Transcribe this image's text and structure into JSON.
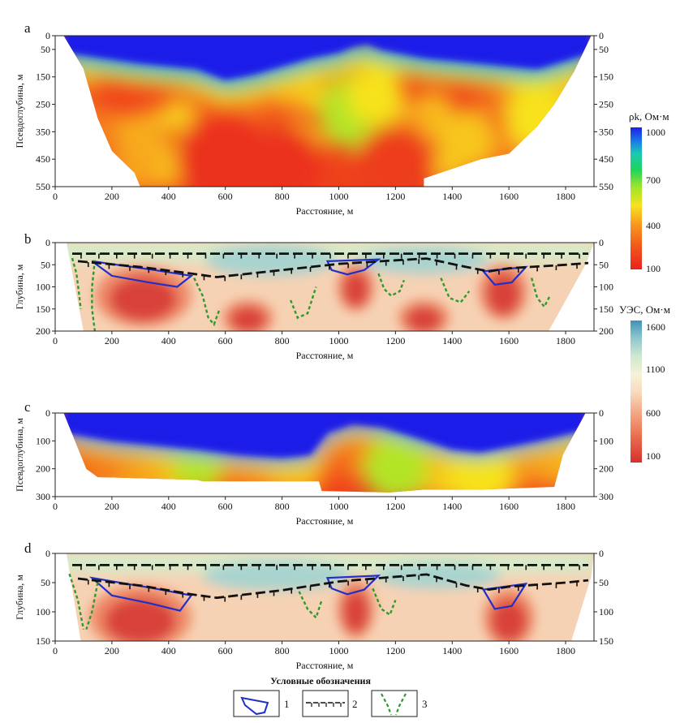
{
  "figure": {
    "legend_title": "Условные обозначения",
    "legend_items": [
      "1",
      "2",
      "3"
    ]
  },
  "colorbars": [
    {
      "title": "ρk, Ом·м",
      "ticks": [
        "1000",
        "700",
        "400",
        "100"
      ],
      "range": [
        100,
        1000
      ],
      "colormap": "rainbow"
    },
    {
      "title": "УЭС, Ом·м",
      "ticks": [
        "1600",
        "1100",
        "600",
        "100"
      ],
      "range": [
        100,
        1600
      ],
      "colormap": "spectral"
    }
  ],
  "chart_data": [
    {
      "panel": "a",
      "type": "heatmap",
      "colorbar": 0,
      "xlabel": "Расстояние, м",
      "ylabel": "Псевдоглубина, м",
      "xlim": [
        0,
        1900
      ],
      "ylim": [
        0,
        550
      ],
      "xticks": [
        "0",
        "200",
        "400",
        "600",
        "800",
        "1000",
        "1200",
        "1400",
        "1600",
        "1800"
      ],
      "yticks": [
        "0",
        "50",
        "150",
        "250",
        "350",
        "450",
        "550"
      ],
      "yticks_right": [
        "0",
        "50",
        "150",
        "250",
        "350",
        "450",
        "550"
      ],
      "ytick_values": [
        0,
        50,
        150,
        250,
        350,
        450,
        550
      ],
      "outline_top": [
        [
          30,
          0
        ],
        [
          1890,
          0
        ]
      ],
      "outline_bottom": [
        [
          30,
          0
        ],
        [
          100,
          120
        ],
        [
          150,
          300
        ],
        [
          200,
          420
        ],
        [
          280,
          500
        ],
        [
          300,
          550
        ],
        [
          1300,
          550
        ],
        [
          1300,
          520
        ],
        [
          1500,
          450
        ],
        [
          1600,
          430
        ],
        [
          1700,
          330
        ],
        [
          1760,
          250
        ],
        [
          1830,
          130
        ],
        [
          1890,
          0
        ]
      ],
      "blue_base": [
        [
          30,
          60
        ],
        [
          300,
          100
        ],
        [
          500,
          120
        ],
        [
          600,
          160
        ],
        [
          700,
          140
        ],
        [
          800,
          110
        ],
        [
          900,
          80
        ],
        [
          1000,
          60
        ],
        [
          1050,
          40
        ],
        [
          1100,
          30
        ],
        [
          1150,
          50
        ],
        [
          1300,
          80
        ],
        [
          1400,
          90
        ],
        [
          1500,
          100
        ],
        [
          1600,
          110
        ],
        [
          1700,
          120
        ],
        [
          1800,
          90
        ],
        [
          1890,
          60
        ]
      ],
      "anomalies": [
        {
          "x": 300,
          "y": 380,
          "level": 0.35,
          "size": 30
        },
        {
          "x": 1060,
          "y": 280,
          "level": 0.55,
          "size": 45
        },
        {
          "x": 1130,
          "y": 220,
          "level": 0.45,
          "size": 35
        },
        {
          "x": 1700,
          "y": 300,
          "level": 0.45,
          "size": 40
        },
        {
          "x": 1450,
          "y": 380,
          "level": 0.4,
          "size": 35
        },
        {
          "x": 600,
          "y": 450,
          "level": 0.05,
          "size": 60
        },
        {
          "x": 800,
          "y": 470,
          "level": 0.05,
          "size": 50
        },
        {
          "x": 1200,
          "y": 470,
          "level": 0.08,
          "size": 50
        }
      ]
    },
    {
      "panel": "b",
      "type": "heatmap",
      "colorbar": 1,
      "xlabel": "Расстояние, м",
      "ylabel": "Глубина, м",
      "xlim": [
        0,
        1900
      ],
      "ylim": [
        0,
        200
      ],
      "xticks": [
        "0",
        "200",
        "400",
        "600",
        "800",
        "1000",
        "1200",
        "1400",
        "1600",
        "1800"
      ],
      "yticks": [
        "0",
        "50",
        "100",
        "150",
        "200"
      ],
      "yticks_right": [
        "0",
        "50",
        "100",
        "150",
        "200"
      ],
      "ytick_values": [
        0,
        50,
        100,
        150,
        200
      ],
      "outline_bottom": [
        [
          0,
          0
        ],
        [
          40,
          0
        ],
        [
          100,
          200
        ],
        [
          1740,
          200
        ],
        [
          1870,
          50
        ],
        [
          1900,
          0
        ]
      ],
      "low_bodies": [
        {
          "x": 310,
          "y": 120,
          "rx": 170,
          "ry": 70
        },
        {
          "x": 680,
          "y": 170,
          "rx": 90,
          "ry": 40
        },
        {
          "x": 1060,
          "y": 100,
          "rx": 65,
          "ry": 55
        },
        {
          "x": 1300,
          "y": 170,
          "rx": 90,
          "ry": 40
        },
        {
          "x": 1580,
          "y": 110,
          "rx": 85,
          "ry": 65
        }
      ],
      "high_bodies": [
        {
          "x": 760,
          "y": 40,
          "rx": 230,
          "ry": 35
        },
        {
          "x": 1300,
          "y": 40,
          "rx": 230,
          "ry": 30
        }
      ],
      "contacts": [
        [
          [
            60,
            25
          ],
          [
            1880,
            25
          ]
        ],
        [
          [
            80,
            42
          ],
          [
            300,
            55
          ],
          [
            480,
            70
          ],
          [
            570,
            78
          ],
          [
            800,
            62
          ],
          [
            1000,
            48
          ],
          [
            1200,
            40
          ],
          [
            1310,
            36
          ],
          [
            1450,
            55
          ],
          [
            1530,
            65
          ],
          [
            1600,
            58
          ],
          [
            1800,
            50
          ],
          [
            1880,
            46
          ]
        ]
      ],
      "bodies_outline": [
        [
          [
            130,
            42
          ],
          [
            350,
            62
          ],
          [
            480,
            75
          ],
          [
            430,
            100
          ],
          [
            330,
            90
          ],
          [
            200,
            75
          ]
        ],
        [
          [
            960,
            42
          ],
          [
            1140,
            38
          ],
          [
            1090,
            62
          ],
          [
            1030,
            72
          ],
          [
            975,
            62
          ]
        ],
        [
          [
            1510,
            65
          ],
          [
            1660,
            55
          ],
          [
            1610,
            90
          ],
          [
            1550,
            95
          ]
        ]
      ],
      "dashed_lines": [
        [
          [
            60,
            35
          ],
          [
            75,
            70
          ],
          [
            85,
            120
          ],
          [
            90,
            150
          ]
        ],
        [
          [
            140,
            40
          ],
          [
            130,
            100
          ],
          [
            130,
            150
          ],
          [
            140,
            200
          ]
        ],
        [
          [
            490,
            80
          ],
          [
            520,
            120
          ],
          [
            540,
            170
          ],
          [
            560,
            185
          ],
          [
            580,
            150
          ]
        ],
        [
          [
            830,
            130
          ],
          [
            855,
            170
          ],
          [
            890,
            160
          ],
          [
            920,
            100
          ]
        ],
        [
          [
            1140,
            70
          ],
          [
            1160,
            105
          ],
          [
            1185,
            120
          ],
          [
            1215,
            110
          ],
          [
            1230,
            85
          ]
        ],
        [
          [
            1360,
            80
          ],
          [
            1390,
            125
          ],
          [
            1430,
            135
          ],
          [
            1460,
            110
          ]
        ],
        [
          [
            1680,
            80
          ],
          [
            1700,
            125
          ],
          [
            1725,
            145
          ],
          [
            1745,
            120
          ]
        ]
      ]
    },
    {
      "panel": "c",
      "type": "heatmap",
      "colorbar": 0,
      "xlabel": "Расстояние, м",
      "ylabel": "Псевдоглубина, м",
      "xlim": [
        0,
        1900
      ],
      "ylim": [
        0,
        300
      ],
      "xticks": [
        "0",
        "200",
        "400",
        "600",
        "800",
        "1000",
        "1200",
        "1400",
        "1600",
        "1800"
      ],
      "yticks": [
        "0",
        "100",
        "200",
        "300"
      ],
      "yticks_right": [
        "0",
        "100",
        "200",
        "300"
      ],
      "ytick_values": [
        0,
        100,
        200,
        300
      ],
      "outline_bottom": [
        [
          30,
          0
        ],
        [
          110,
          200
        ],
        [
          150,
          230
        ],
        [
          500,
          240
        ],
        [
          520,
          245
        ],
        [
          930,
          245
        ],
        [
          940,
          280
        ],
        [
          1180,
          285
        ],
        [
          1300,
          275
        ],
        [
          1500,
          275
        ],
        [
          1760,
          265
        ],
        [
          1790,
          150
        ],
        [
          1870,
          0
        ]
      ],
      "blue_base": [
        [
          30,
          70
        ],
        [
          200,
          100
        ],
        [
          400,
          120
        ],
        [
          500,
          130
        ],
        [
          650,
          150
        ],
        [
          800,
          160
        ],
        [
          900,
          150
        ],
        [
          960,
          70
        ],
        [
          1050,
          40
        ],
        [
          1150,
          50
        ],
        [
          1250,
          80
        ],
        [
          1400,
          130
        ],
        [
          1500,
          140
        ],
        [
          1600,
          120
        ],
        [
          1700,
          100
        ],
        [
          1870,
          60
        ]
      ],
      "anomalies": [
        {
          "x": 1200,
          "y": 200,
          "level": 0.55,
          "size": 40
        },
        {
          "x": 1500,
          "y": 220,
          "level": 0.45,
          "size": 40
        },
        {
          "x": 500,
          "y": 200,
          "level": 0.55,
          "size": 30
        }
      ]
    },
    {
      "panel": "d",
      "type": "heatmap",
      "colorbar": 1,
      "xlabel": "Расстояние, м",
      "ylabel": "Глубина, м",
      "xlim": [
        0,
        1900
      ],
      "ylim": [
        0,
        150
      ],
      "xticks": [
        "0",
        "200",
        "400",
        "600",
        "800",
        "1000",
        "1200",
        "1400",
        "1600",
        "1800"
      ],
      "yticks": [
        "0",
        "50",
        "100",
        "150"
      ],
      "yticks_right": [
        "0",
        "50",
        "100",
        "150"
      ],
      "ytick_values": [
        0,
        50,
        100,
        150
      ],
      "outline_bottom": [
        [
          0,
          0
        ],
        [
          40,
          0
        ],
        [
          90,
          150
        ],
        [
          1820,
          150
        ],
        [
          1890,
          40
        ],
        [
          1900,
          0
        ]
      ],
      "low_bodies": [
        {
          "x": 300,
          "y": 110,
          "rx": 180,
          "ry": 55
        },
        {
          "x": 1060,
          "y": 95,
          "rx": 65,
          "ry": 50
        },
        {
          "x": 1600,
          "y": 110,
          "rx": 90,
          "ry": 50
        }
      ],
      "high_bodies": [
        {
          "x": 780,
          "y": 38,
          "rx": 260,
          "ry": 25
        },
        {
          "x": 1350,
          "y": 38,
          "rx": 220,
          "ry": 22
        }
      ],
      "contacts": [
        [
          [
            60,
            20
          ],
          [
            1880,
            20
          ]
        ],
        [
          [
            80,
            43
          ],
          [
            300,
            55
          ],
          [
            480,
            70
          ],
          [
            570,
            76
          ],
          [
            800,
            63
          ],
          [
            1000,
            48
          ],
          [
            1200,
            40
          ],
          [
            1310,
            36
          ],
          [
            1450,
            55
          ],
          [
            1530,
            62
          ],
          [
            1600,
            57
          ],
          [
            1800,
            50
          ],
          [
            1880,
            46
          ]
        ]
      ],
      "bodies_outline": [
        [
          [
            130,
            42
          ],
          [
            350,
            60
          ],
          [
            480,
            72
          ],
          [
            440,
            98
          ],
          [
            330,
            85
          ],
          [
            200,
            72
          ]
        ],
        [
          [
            960,
            42
          ],
          [
            1140,
            38
          ],
          [
            1090,
            62
          ],
          [
            1030,
            70
          ],
          [
            975,
            60
          ]
        ],
        [
          [
            1510,
            62
          ],
          [
            1660,
            52
          ],
          [
            1610,
            90
          ],
          [
            1550,
            95
          ]
        ]
      ],
      "dashed_lines": [
        [
          [
            50,
            35
          ],
          [
            80,
            80
          ],
          [
            100,
            130
          ]
        ],
        [
          [
            150,
            50
          ],
          [
            130,
            100
          ],
          [
            110,
            130
          ]
        ],
        [
          [
            860,
            65
          ],
          [
            890,
            95
          ],
          [
            920,
            110
          ],
          [
            940,
            80
          ]
        ],
        [
          [
            1120,
            60
          ],
          [
            1150,
            95
          ],
          [
            1180,
            105
          ],
          [
            1200,
            80
          ]
        ]
      ]
    }
  ]
}
